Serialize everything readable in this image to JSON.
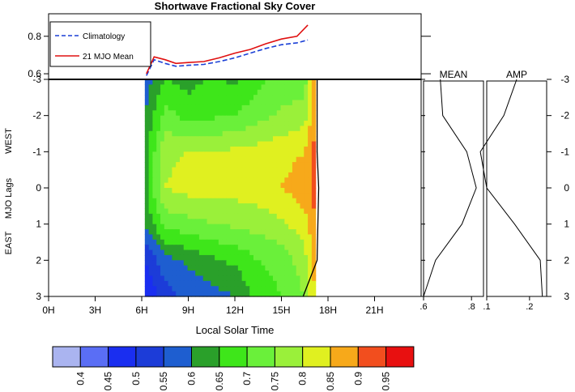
{
  "chart_data": [
    {
      "type": "line",
      "title": "Shortwave Fractional Sky Cover",
      "x": [
        6.3,
        6.8,
        7.5,
        8.2,
        9.0,
        10.0,
        11.0,
        12.0,
        13.0,
        14.0,
        15.0,
        16.0,
        16.7
      ],
      "series": [
        {
          "name": "Climatology",
          "color": "#1a3fd6",
          "dash": true,
          "values": [
            0.59,
            0.675,
            0.655,
            0.64,
            0.645,
            0.65,
            0.665,
            0.685,
            0.71,
            0.735,
            0.755,
            0.765,
            0.78
          ]
        },
        {
          "name": "21 MJO Mean",
          "color": "#e01010",
          "dash": false,
          "values": [
            0.6,
            0.69,
            0.675,
            0.655,
            0.66,
            0.665,
            0.685,
            0.71,
            0.73,
            0.76,
            0.785,
            0.8,
            0.86
          ]
        }
      ],
      "ylim": [
        0.57,
        0.92
      ],
      "yticks": [
        "0.6",
        "0.8"
      ],
      "legend": "top-left"
    },
    {
      "type": "heatmap",
      "xlabel": "Local Solar Time",
      "ylabel": "MJO Lags",
      "ylabel_top": "WEST",
      "ylabel_bottom": "EAST",
      "xticks": [
        "0H",
        "3H",
        "6H",
        "9H",
        "12H",
        "15H",
        "18H",
        "21H"
      ],
      "yticks": [
        "-3",
        "-2",
        "-1",
        "0",
        "1",
        "2",
        "3"
      ],
      "xlim": [
        0,
        24
      ],
      "ylim": [
        -3,
        3
      ],
      "x_hours": [
        6.2,
        7.5,
        9,
        10.5,
        12,
        13.5,
        15,
        16.5,
        17.2
      ],
      "y_lags": [
        -3,
        -2,
        -1,
        0,
        1,
        2,
        3
      ],
      "levels": [
        0.4,
        0.45,
        0.5,
        0.55,
        0.6,
        0.65,
        0.7,
        0.75,
        0.8,
        0.85,
        0.9,
        0.95
      ],
      "colors": [
        "#aab4f0",
        "#5a6ef5",
        "#1a2ef0",
        "#1c3cd8",
        "#1e5ed0",
        "#2aa02a",
        "#3ee61a",
        "#6af03a",
        "#9af03a",
        "#e0f020",
        "#f7a91a",
        "#f24e1e",
        "#e81010"
      ],
      "values": [
        [
          0.57,
          0.65,
          0.63,
          0.66,
          0.64,
          0.69,
          0.71,
          0.72,
          0.9
        ],
        [
          0.6,
          0.72,
          0.68,
          0.69,
          0.7,
          0.73,
          0.76,
          0.78,
          0.9
        ],
        [
          0.62,
          0.79,
          0.8,
          0.8,
          0.81,
          0.82,
          0.83,
          0.85,
          0.92
        ],
        [
          0.63,
          0.8,
          0.82,
          0.82,
          0.82,
          0.83,
          0.85,
          0.88,
          0.92
        ],
        [
          0.6,
          0.72,
          0.73,
          0.75,
          0.76,
          0.77,
          0.79,
          0.83,
          0.9
        ],
        [
          0.5,
          0.58,
          0.61,
          0.64,
          0.66,
          0.7,
          0.72,
          0.78,
          0.88
        ],
        [
          0.45,
          0.53,
          0.56,
          0.58,
          0.6,
          0.67,
          0.7,
          0.75,
          0.86
        ]
      ],
      "phase_line": [
        [
          16.4,
          3
        ],
        [
          17.3,
          2
        ],
        [
          17.35,
          1
        ],
        [
          17.4,
          0
        ],
        [
          17.3,
          -1
        ],
        [
          17.3,
          -2
        ],
        [
          17.3,
          -3
        ]
      ]
    },
    {
      "type": "line",
      "title": "MEAN",
      "lags": [
        -3,
        -2,
        -1,
        0,
        1,
        2,
        3
      ],
      "values": [
        0.67,
        0.68,
        0.78,
        0.82,
        0.76,
        0.65,
        0.6
      ],
      "xlim": [
        0.6,
        0.85
      ],
      "xticks": [
        ".6",
        ".8"
      ]
    },
    {
      "type": "line",
      "title": "AMP",
      "lags": [
        -3,
        -2,
        -1,
        0,
        1,
        2,
        3
      ],
      "values": [
        0.17,
        0.14,
        0.085,
        0.1,
        0.165,
        0.225,
        0.23
      ],
      "xlim": [
        0.1,
        0.24
      ],
      "xticks": [
        ".1",
        ".2"
      ]
    }
  ],
  "colorbar": {
    "colors": [
      "#aab4f0",
      "#5a6ef5",
      "#1a2ef0",
      "#1c3cd8",
      "#1e5ed0",
      "#2aa02a",
      "#3ee61a",
      "#6af03a",
      "#9af03a",
      "#e0f020",
      "#f7a91a",
      "#f24e1e",
      "#e81010"
    ],
    "labels": [
      "0.4",
      "0.45",
      "0.5",
      "0.55",
      "0.6",
      "0.65",
      "0.7",
      "0.75",
      "0.8",
      "0.85",
      "0.9",
      "0.95"
    ]
  }
}
